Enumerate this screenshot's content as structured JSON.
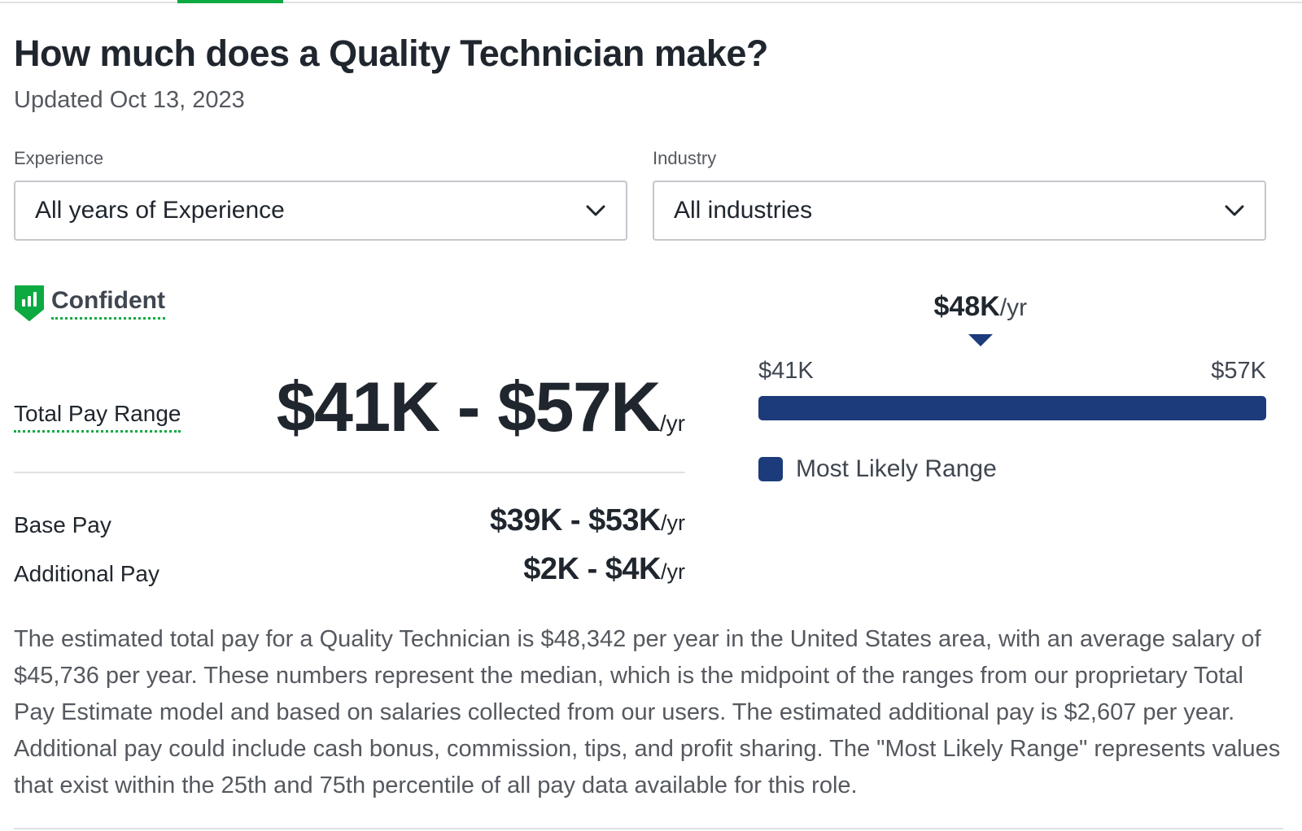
{
  "header": {
    "title": "How much does a Quality Technician make?",
    "updated": "Updated Oct 13, 2023"
  },
  "filters": {
    "experience": {
      "label": "Experience",
      "value": "All years of Experience"
    },
    "industry": {
      "label": "Industry",
      "value": "All industries"
    }
  },
  "confidence": {
    "label": "Confident",
    "icon": "bar-chart-shield-icon",
    "color": "#0caa41"
  },
  "total_pay": {
    "label": "Total Pay Range",
    "range": "$41K - $57K",
    "unit": "/yr"
  },
  "base_pay": {
    "label": "Base Pay",
    "range": "$39K - $53K",
    "unit": "/yr"
  },
  "additional_pay": {
    "label": "Additional Pay",
    "range": "$2K - $4K",
    "unit": "/yr"
  },
  "range_chart": {
    "median_value": "$48K",
    "median_unit": "/yr",
    "min_label": "$41K",
    "max_label": "$57K",
    "legend_label": "Most Likely Range",
    "min": 41,
    "max": 57,
    "median": 48,
    "likely_low": 41,
    "likely_high": 57,
    "bar_color": "#1c3b7a"
  },
  "description": "The estimated total pay for a Quality Technician is $48,342 per year in the United States area, with an average salary of $45,736 per year. These numbers represent the median, which is the midpoint of the ranges from our proprietary Total Pay Estimate model and based on salaries collected from our users. The estimated additional pay is $2,607 per year. Additional pay could include cash bonus, commission, tips, and profit sharing. The \"Most Likely Range\" represents values that exist within the 25th and 75th percentile of all pay data available for this role."
}
